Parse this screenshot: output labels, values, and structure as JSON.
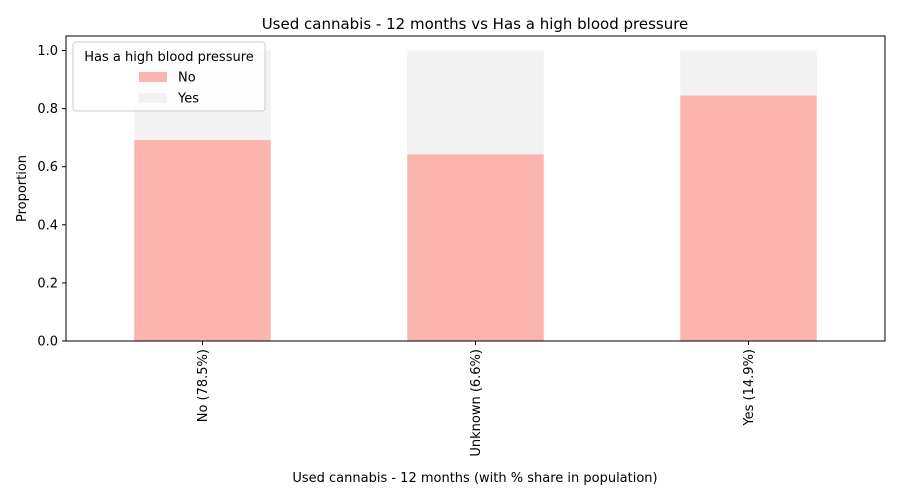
{
  "chart_data": {
    "type": "bar",
    "stacked": true,
    "title": "Used cannabis - 12 months vs Has a high blood pressure",
    "xlabel": "Used cannabis - 12 months (with % share in population)",
    "ylabel": "Proportion",
    "categories": [
      "No (78.5%)",
      "Unknown (6.6%)",
      "Yes (14.9%)"
    ],
    "series": [
      {
        "name": "No",
        "color": "#fbb4ae",
        "values": [
          0.692,
          0.643,
          0.845
        ]
      },
      {
        "name": "Yes",
        "color": "#f2f2f2",
        "values": [
          0.308,
          0.357,
          0.155
        ]
      }
    ],
    "ylim": [
      0,
      1.05
    ],
    "yticks": [
      "0.0",
      "0.2",
      "0.4",
      "0.6",
      "0.8",
      "1.0"
    ],
    "grid": false,
    "legend": {
      "title": "Has a high blood pressure",
      "placement": "top-left"
    }
  }
}
